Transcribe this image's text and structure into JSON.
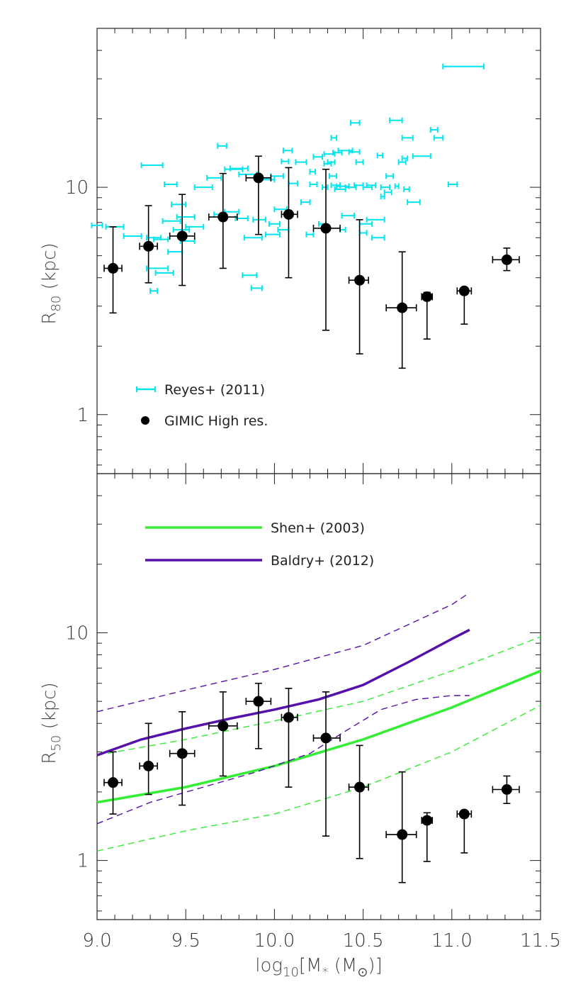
{
  "chart_data": [
    {
      "type": "scatter",
      "panel": "top",
      "ylabel": "R",
      "ylabel_sub": "80",
      "ylabel_unit": " (kpc)",
      "yscale": "log",
      "xlim": [
        9.0,
        11.5
      ],
      "ylim": [
        0.55,
        50
      ],
      "ytick_labels": [
        "1",
        "10"
      ],
      "colors": {
        "reyes": "#00e5ee",
        "gimic": "#000000"
      },
      "legend": [
        {
          "label": "Reyes+ (2011)",
          "marker": "cyan-errorbar"
        },
        {
          "label": "GIMIC High res.",
          "marker": "black-dot"
        }
      ],
      "series": [
        {
          "name": "Reyes+ (2011)",
          "points": [
            [
              8.97,
              9.03,
              6.8
            ],
            [
              9.05,
              9.15,
              6.7
            ],
            [
              9.15,
              9.25,
              6.1
            ],
            [
              9.25,
              9.37,
              12.5
            ],
            [
              9.28,
              9.36,
              6.0
            ],
            [
              9.3,
              9.34,
              3.5
            ],
            [
              9.32,
              9.4,
              5.9
            ],
            [
              9.28,
              9.4,
              4.4
            ],
            [
              9.33,
              9.43,
              4.2
            ],
            [
              9.38,
              9.45,
              10.3
            ],
            [
              9.37,
              9.47,
              7.1
            ],
            [
              9.4,
              9.48,
              5.2
            ],
            [
              9.43,
              9.52,
              6.5
            ],
            [
              9.42,
              9.5,
              8.4
            ],
            [
              9.45,
              9.55,
              7.4
            ],
            [
              9.47,
              9.55,
              5.8
            ],
            [
              9.5,
              9.6,
              6.7
            ],
            [
              9.55,
              9.65,
              10.0
            ],
            [
              9.62,
              9.7,
              11.0
            ],
            [
              9.66,
              9.72,
              7.6
            ],
            [
              9.68,
              9.73,
              15.2
            ],
            [
              9.72,
              9.8,
              7.8
            ],
            [
              9.72,
              9.82,
              12.0
            ],
            [
              9.75,
              9.85,
              12.1
            ],
            [
              9.78,
              9.85,
              7.3
            ],
            [
              9.8,
              9.9,
              11.4
            ],
            [
              9.82,
              9.9,
              4.1
            ],
            [
              9.83,
              9.93,
              6.0
            ],
            [
              9.87,
              9.93,
              3.6
            ],
            [
              9.88,
              9.95,
              7.2
            ],
            [
              9.9,
              9.98,
              11.0
            ],
            [
              9.92,
              10.0,
              10.8
            ],
            [
              9.95,
              10.03,
              6.2
            ],
            [
              9.97,
              10.03,
              6.9
            ],
            [
              9.98,
              10.05,
              11.2
            ],
            [
              10.0,
              10.07,
              8.0
            ],
            [
              10.02,
              10.08,
              6.5
            ],
            [
              10.04,
              10.08,
              13.0
            ],
            [
              10.05,
              10.1,
              14.5
            ],
            [
              10.08,
              10.13,
              10.4
            ],
            [
              10.12,
              10.18,
              12.9
            ],
            [
              10.15,
              10.2,
              8.6
            ],
            [
              10.18,
              10.22,
              6.2
            ],
            [
              10.2,
              10.23,
              11.7
            ],
            [
              10.2,
              10.24,
              10.3
            ],
            [
              10.22,
              10.27,
              13.6
            ],
            [
              10.25,
              10.29,
              6.9
            ],
            [
              10.27,
              10.3,
              10.0
            ],
            [
              10.28,
              10.32,
              12.7
            ],
            [
              10.28,
              10.34,
              14.0
            ],
            [
              10.3,
              10.34,
              12.9
            ],
            [
              10.31,
              10.35,
              11.2
            ],
            [
              10.32,
              10.35,
              16.5
            ],
            [
              10.32,
              10.37,
              10.2
            ],
            [
              10.33,
              10.38,
              14.2
            ],
            [
              10.34,
              10.4,
              9.8
            ],
            [
              10.35,
              10.42,
              10.1
            ],
            [
              10.37,
              10.4,
              6.5
            ],
            [
              10.38,
              10.45,
              7.5
            ],
            [
              10.36,
              10.44,
              14.5
            ],
            [
              10.4,
              10.46,
              10.0
            ],
            [
              10.42,
              10.48,
              14.3
            ],
            [
              10.43,
              10.48,
              19.2
            ],
            [
              10.45,
              10.5,
              10.2
            ],
            [
              10.46,
              10.5,
              12.9
            ],
            [
              10.48,
              10.52,
              6.3
            ],
            [
              10.48,
              10.55,
              6.9
            ],
            [
              10.5,
              10.55,
              10.0
            ],
            [
              10.52,
              10.57,
              10.2
            ],
            [
              10.52,
              10.62,
              7.2
            ],
            [
              10.55,
              10.62,
              6.0
            ],
            [
              10.58,
              10.61,
              13.8
            ],
            [
              10.6,
              10.62,
              9.1
            ],
            [
              10.6,
              10.65,
              10.0
            ],
            [
              10.62,
              10.66,
              9.5
            ],
            [
              10.63,
              10.67,
              11.2
            ],
            [
              10.65,
              10.72,
              19.7
            ],
            [
              10.68,
              10.7,
              10.1
            ],
            [
              10.7,
              10.74,
              12.9
            ],
            [
              10.72,
              10.75,
              13.4
            ],
            [
              10.72,
              10.78,
              16.5
            ],
            [
              10.73,
              10.76,
              9.8
            ],
            [
              10.75,
              10.82,
              8.6
            ],
            [
              10.78,
              10.88,
              13.7
            ],
            [
              10.88,
              10.92,
              17.9
            ],
            [
              10.9,
              10.95,
              16.5
            ],
            [
              10.98,
              11.03,
              10.3
            ],
            [
              10.95,
              11.18,
              34.0
            ]
          ]
        },
        {
          "name": "GIMIC High res.",
          "points": [
            [
              9.09,
              9.04,
              9.14,
              4.4,
              2.8,
              6.7
            ],
            [
              9.29,
              9.24,
              9.34,
              5.5,
              3.8,
              8.3
            ],
            [
              9.48,
              9.41,
              9.55,
              6.1,
              3.7,
              9.3
            ],
            [
              9.71,
              9.63,
              9.79,
              7.4,
              4.4,
              11.5
            ],
            [
              9.91,
              9.84,
              9.98,
              11.0,
              6.2,
              13.7
            ],
            [
              10.08,
              10.04,
              10.13,
              7.6,
              4.0,
              12.2
            ],
            [
              10.29,
              10.22,
              10.37,
              6.6,
              2.35,
              12.0
            ],
            [
              10.48,
              10.42,
              10.53,
              3.9,
              1.85,
              7.2
            ],
            [
              10.72,
              10.63,
              10.8,
              2.95,
              1.6,
              5.2
            ],
            [
              10.86,
              10.83,
              10.89,
              3.3,
              2.15,
              3.45
            ],
            [
              11.07,
              11.03,
              11.11,
              3.5,
              2.5,
              3.5
            ],
            [
              11.31,
              11.23,
              11.38,
              4.8,
              4.3,
              5.4
            ]
          ]
        }
      ]
    },
    {
      "type": "line",
      "panel": "bottom",
      "xlabel": "log",
      "xlabel_sub": "10",
      "xlabel_mid": "[M",
      "xlabel_sub2": "*",
      "xlabel_end": " (M",
      "xlabel_sun": "⊙",
      "xlabel_close": ")]",
      "ylabel": "R",
      "ylabel_sub": "50",
      "ylabel_unit": " (kpc)",
      "yscale": "log",
      "xlim": [
        9.0,
        11.5
      ],
      "ylim": [
        0.55,
        50
      ],
      "xtick_labels": [
        "9.0",
        "9.5",
        "10.0",
        "10.5",
        "11.0",
        "11.5"
      ],
      "xticks": [
        9.0,
        9.5,
        10.0,
        10.5,
        11.0,
        11.5
      ],
      "ytick_labels": [
        "1",
        "10"
      ],
      "colors": {
        "shen": "#33ee33",
        "baldry": "#5511aa",
        "gimic": "#000000"
      },
      "legend": [
        {
          "label": "Shen+ (2003)",
          "color": "#33ee33"
        },
        {
          "label": "Baldry+ (2012)",
          "color": "#5511aa"
        }
      ],
      "series": [
        {
          "name": "Shen+ (2003)",
          "style": "solid",
          "x": [
            9.0,
            9.5,
            10.0,
            10.5,
            11.0,
            11.5
          ],
          "y": [
            1.8,
            2.1,
            2.6,
            3.4,
            4.7,
            6.8
          ]
        },
        {
          "name": "Shen+ (2003) upper",
          "style": "dashed",
          "x": [
            9.0,
            9.5,
            10.0,
            10.5,
            11.0,
            11.5
          ],
          "y": [
            2.9,
            3.4,
            4.1,
            5.0,
            6.8,
            9.6
          ]
        },
        {
          "name": "Shen+ (2003) lower",
          "style": "dashed",
          "x": [
            9.0,
            9.5,
            10.0,
            10.5,
            11.0,
            11.5
          ],
          "y": [
            1.1,
            1.35,
            1.6,
            2.1,
            3.0,
            4.8
          ]
        },
        {
          "name": "Baldry+ (2012)",
          "style": "solid",
          "x": [
            9.0,
            9.25,
            9.5,
            9.75,
            10.0,
            10.25,
            10.5,
            10.75,
            11.0,
            11.1
          ],
          "y": [
            2.9,
            3.4,
            3.8,
            4.2,
            4.6,
            5.1,
            5.9,
            7.4,
            9.4,
            10.3
          ]
        },
        {
          "name": "Baldry+ (2012) upper",
          "style": "dashed",
          "x": [
            9.0,
            9.5,
            10.0,
            10.5,
            11.0,
            11.1
          ],
          "y": [
            4.5,
            5.6,
            6.9,
            8.8,
            13.3,
            15.0
          ]
        },
        {
          "name": "Baldry+ (2012) lower",
          "style": "dashed",
          "x": [
            9.0,
            9.3,
            9.6,
            9.9,
            10.2,
            10.4,
            10.6,
            10.8,
            11.0,
            11.1
          ],
          "y": [
            1.45,
            1.8,
            2.1,
            2.45,
            2.95,
            3.7,
            4.6,
            5.1,
            5.3,
            5.3
          ]
        },
        {
          "name": "GIMIC High res.",
          "style": "points",
          "points": [
            [
              9.09,
              9.04,
              9.14,
              2.2,
              1.6,
              3.0
            ],
            [
              9.29,
              9.24,
              9.34,
              2.6,
              1.95,
              4.0
            ],
            [
              9.48,
              9.41,
              9.55,
              2.95,
              1.75,
              4.5
            ],
            [
              9.71,
              9.63,
              9.79,
              3.9,
              2.35,
              5.5
            ],
            [
              9.91,
              9.84,
              9.98,
              5.0,
              3.1,
              6.0
            ],
            [
              10.08,
              10.04,
              10.13,
              4.25,
              2.1,
              5.7
            ],
            [
              10.29,
              10.22,
              10.37,
              3.45,
              1.28,
              5.5
            ],
            [
              10.48,
              10.42,
              10.53,
              2.1,
              1.02,
              3.2
            ],
            [
              10.72,
              10.63,
              10.8,
              1.3,
              0.8,
              2.45
            ],
            [
              10.86,
              10.83,
              10.89,
              1.5,
              0.99,
              1.62
            ],
            [
              11.07,
              11.03,
              11.11,
              1.6,
              1.08,
              1.6
            ],
            [
              11.31,
              11.23,
              11.38,
              2.05,
              1.78,
              2.35
            ]
          ]
        }
      ]
    }
  ]
}
